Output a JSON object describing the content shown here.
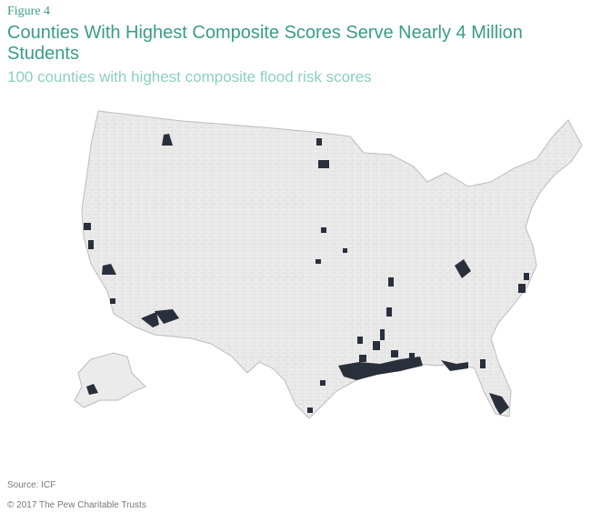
{
  "header": {
    "figure": "Figure 4",
    "title": "Counties With Highest Composite Scores Serve Nearly 4 Million Students",
    "subtitle": "100 counties with highest composite flood risk scores"
  },
  "footer": {
    "source": "Source: ICF",
    "copyright": "© 2017 The Pew Charitable Trusts"
  }
}
